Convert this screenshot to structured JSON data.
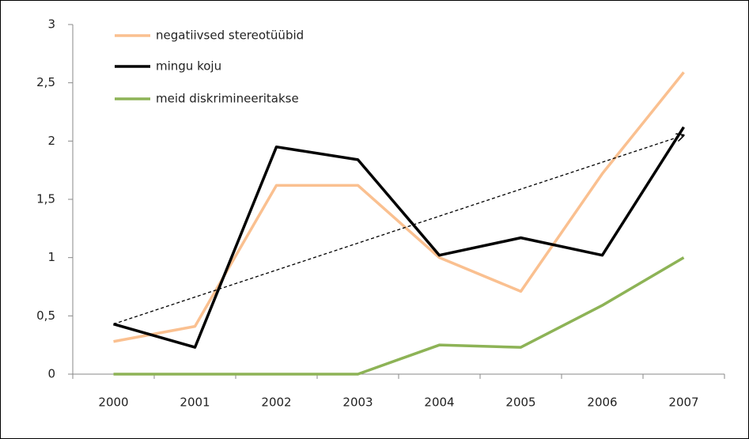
{
  "chart_data": {
    "type": "line",
    "categories": [
      "2000",
      "2001",
      "2002",
      "2003",
      "2004",
      "2005",
      "2006",
      "2007"
    ],
    "series": [
      {
        "name": "negatiivsed stereotüübid",
        "color": "#fac090",
        "values": [
          0.28,
          0.41,
          1.62,
          1.62,
          1.0,
          0.71,
          1.72,
          2.59
        ]
      },
      {
        "name": "mingu koju",
        "color": "#000000",
        "values": [
          0.43,
          0.23,
          1.95,
          1.84,
          1.02,
          1.17,
          1.02,
          2.12
        ]
      },
      {
        "name": "meid diskrimineeritakse",
        "color": "#8db356",
        "values": [
          0,
          0,
          0,
          0,
          0.25,
          0.23,
          0.59,
          1.0
        ]
      }
    ],
    "trendline": {
      "color": "#000000",
      "values": [
        0.43,
        2.05
      ]
    },
    "ylim": [
      0,
      3
    ],
    "yticks": [
      0,
      {
        "value": 0.5,
        "label": "0,5"
      },
      1,
      {
        "value": 1.5,
        "label": "1,5"
      },
      2,
      {
        "value": 2.5,
        "label": "2,5"
      },
      3
    ],
    "grid": false,
    "legend": "top-left"
  }
}
